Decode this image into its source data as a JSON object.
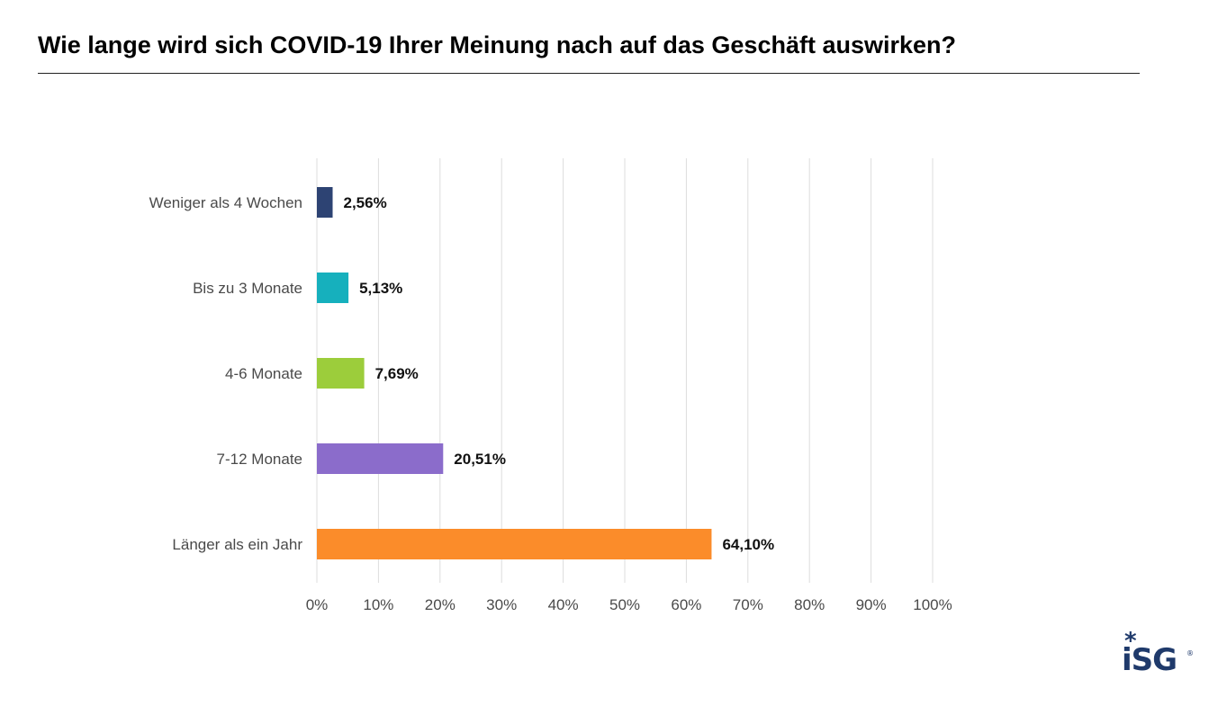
{
  "chart_data": {
    "type": "bar",
    "orientation": "horizontal",
    "title": "Wie lange wird sich COVID-19 Ihrer Meinung nach auf das Geschäft auswirken?",
    "categories": [
      "Weniger als 4 Wochen",
      "Bis zu 3 Monate",
      "4-6 Monate",
      "7-12 Monate",
      "Länger als ein Jahr"
    ],
    "values": [
      2.56,
      5.13,
      7.69,
      20.51,
      64.1
    ],
    "value_labels": [
      "2,56%",
      "5,13%",
      "7,69%",
      "20,51%",
      "64,10%"
    ],
    "colors": [
      "#2d4373",
      "#16b0bd",
      "#9ccd3b",
      "#8b6ccb",
      "#fb8c2a"
    ],
    "xlim": [
      0,
      100
    ],
    "x_ticks": [
      0,
      10,
      20,
      30,
      40,
      50,
      60,
      70,
      80,
      90,
      100
    ],
    "x_tick_labels": [
      "0%",
      "10%",
      "20%",
      "30%",
      "40%",
      "50%",
      "60%",
      "70%",
      "80%",
      "90%",
      "100%"
    ],
    "xlabel": "",
    "ylabel": "",
    "grid": true,
    "grid_color": "#dddddd",
    "legend": "none"
  },
  "logo": {
    "text": "iSG",
    "star": "*",
    "registered": "®",
    "color": "#1f3a6b"
  }
}
